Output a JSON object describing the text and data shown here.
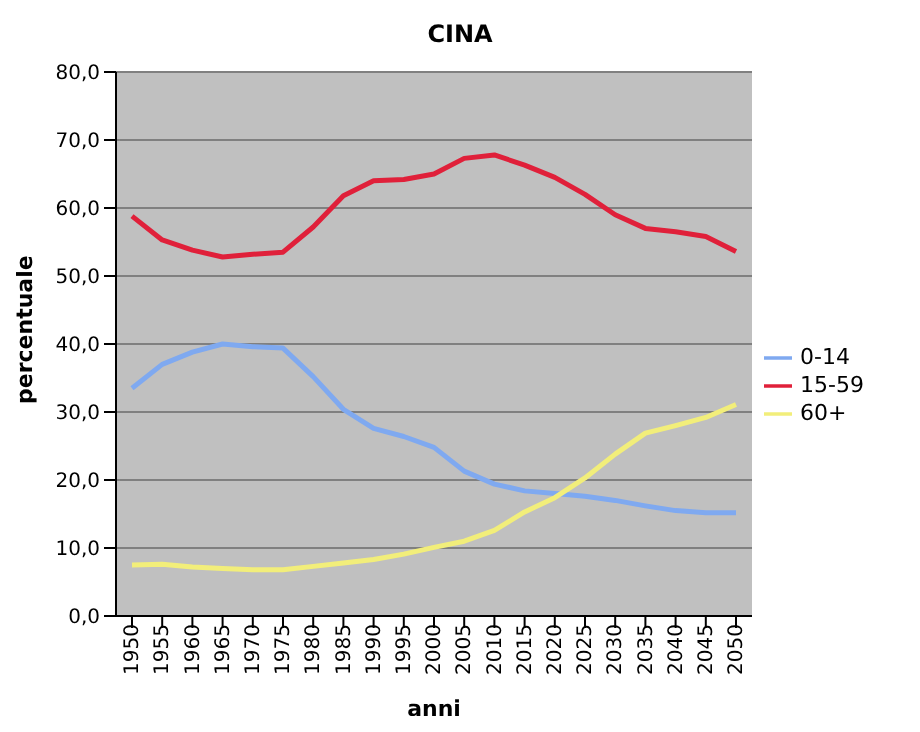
{
  "chart_data": {
    "type": "line",
    "title": "CINA",
    "xlabel": "anni",
    "ylabel": "percentuale",
    "categories": [
      "1950",
      "1955",
      "1960",
      "1965",
      "1970",
      "1975",
      "1980",
      "1985",
      "1990",
      "1995",
      "2000",
      "2005",
      "2010",
      "2015",
      "2020",
      "2025",
      "2030",
      "2035",
      "2040",
      "2045",
      "2050"
    ],
    "series": [
      {
        "name": "0-14",
        "color": "#7fa9f0",
        "values": [
          33.5,
          37,
          38.8,
          40,
          39.6,
          39.4,
          35.2,
          30.4,
          27.6,
          26.4,
          24.8,
          21.3,
          19.4,
          18.4,
          18,
          17.6,
          17,
          16.2,
          15.5,
          15.2,
          15.2
        ]
      },
      {
        "name": "15-59",
        "color": "#e0203a",
        "values": [
          58.8,
          55.3,
          53.8,
          52.8,
          53.2,
          53.5,
          57.2,
          61.8,
          64,
          64.2,
          65,
          67.3,
          67.8,
          66.3,
          64.5,
          62,
          59,
          57,
          56.5,
          55.8,
          53.6
        ]
      },
      {
        "name": "60+",
        "color": "#f2ee7a",
        "values": [
          7.5,
          7.6,
          7.2,
          7,
          6.8,
          6.8,
          7.3,
          7.8,
          8.3,
          9.1,
          10.1,
          11,
          12.6,
          15.3,
          17.4,
          20.3,
          23.8,
          26.9,
          28,
          29.2,
          31.1
        ]
      }
    ],
    "ylim": [
      0,
      80
    ],
    "yticks": [
      {
        "value": 0,
        "label": "0,0"
      },
      {
        "value": 10,
        "label": "10,0"
      },
      {
        "value": 20,
        "label": "20,0"
      },
      {
        "value": 30,
        "label": "30,0"
      },
      {
        "value": 40,
        "label": "40,0"
      },
      {
        "value": 50,
        "label": "50,0"
      },
      {
        "value": 60,
        "label": "60,0"
      },
      {
        "value": 70,
        "label": "70,0"
      },
      {
        "value": 80,
        "label": "80,0"
      }
    ],
    "grid": "y",
    "legend": "right",
    "marker": "none",
    "line_style": "solid"
  }
}
